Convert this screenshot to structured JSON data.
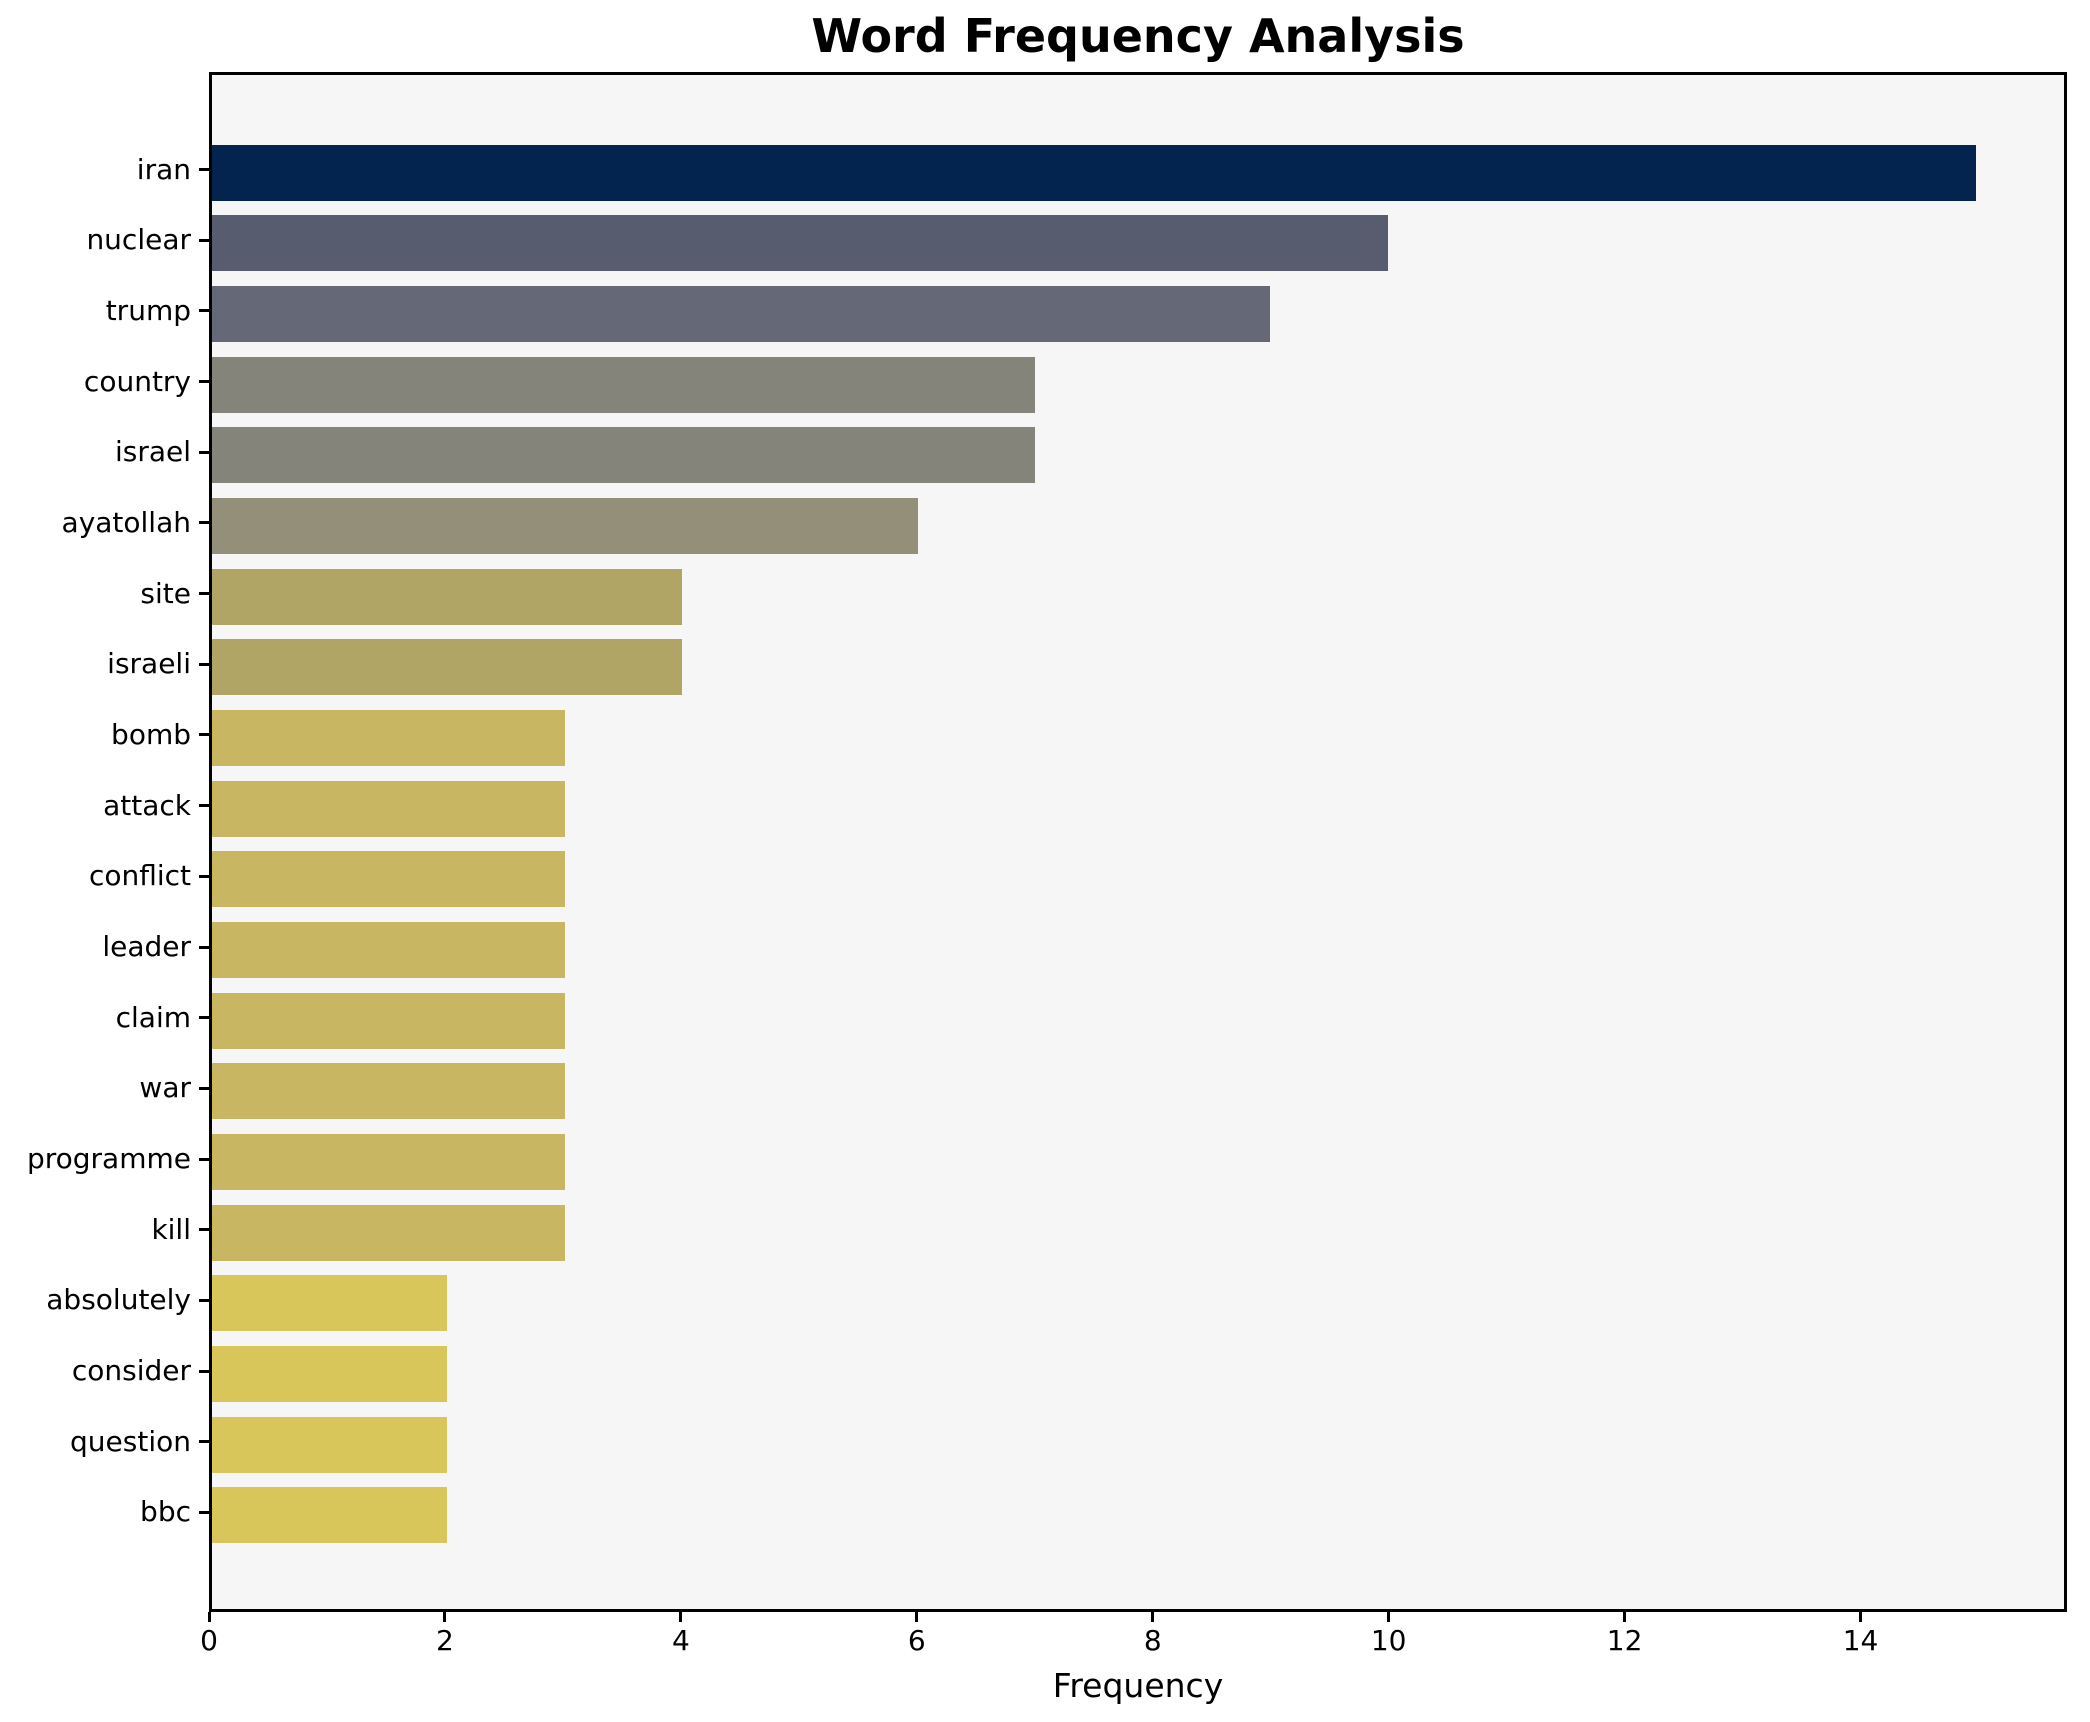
{
  "chart_data": {
    "type": "bar",
    "orientation": "horizontal",
    "title": "Word Frequency Analysis",
    "xlabel": "Frequency",
    "ylabel": "",
    "categories": [
      "iran",
      "nuclear",
      "trump",
      "country",
      "israel",
      "ayatollah",
      "site",
      "israeli",
      "bomb",
      "attack",
      "conflict",
      "leader",
      "claim",
      "war",
      "programme",
      "kill",
      "absolutely",
      "consider",
      "question",
      "bbc"
    ],
    "values": [
      15,
      10,
      9,
      7,
      7,
      6,
      4,
      4,
      3,
      3,
      3,
      3,
      3,
      3,
      3,
      3,
      2,
      2,
      2,
      2
    ],
    "bar_colors": [
      "#02244f",
      "#575c6e",
      "#646877",
      "#84847b",
      "#84847b",
      "#948f78",
      "#b1a566",
      "#b1a566",
      "#c8b662",
      "#c8b662",
      "#c8b662",
      "#c8b662",
      "#c8b662",
      "#c8b662",
      "#c8b662",
      "#c8b662",
      "#d9c65b",
      "#d9c65b",
      "#d9c65b",
      "#d9c65b"
    ],
    "xlim": [
      0,
      15.75
    ],
    "xticks": [
      0,
      2,
      4,
      6,
      8,
      10,
      12,
      14
    ],
    "grid": false,
    "legend": "none",
    "plot_background_color": "#f6f6f7",
    "figure_background_color": "#ffffff",
    "axis_color": "#000000"
  }
}
